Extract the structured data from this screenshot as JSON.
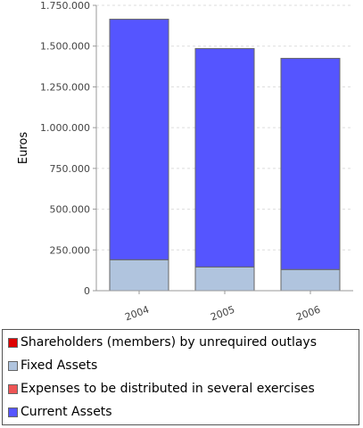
{
  "chart_data": {
    "type": "bar",
    "stacked": true,
    "categories": [
      "2004",
      "2005",
      "2006"
    ],
    "ylabel": "Euros",
    "ylim": [
      0,
      1750000
    ],
    "yticks": [
      0,
      250000,
      500000,
      750000,
      1000000,
      1250000,
      1500000,
      1750000
    ],
    "ytick_labels": [
      "0",
      "250.000",
      "500.000",
      "750.000",
      "1.000.000",
      "1.250.000",
      "1.500.000",
      "1.750.000"
    ],
    "grid": true,
    "legend_position": "bottom",
    "series": [
      {
        "name": "Shareholders (members) by unrequired outlays",
        "color": "#dd0000",
        "values": [
          0,
          0,
          0
        ]
      },
      {
        "name": "Fixed Assets",
        "color": "#b0c4de",
        "values": [
          190000,
          145000,
          130000
        ]
      },
      {
        "name": "Expenses to be distributed in several exercises",
        "color": "#ee5555",
        "values": [
          0,
          0,
          0
        ]
      },
      {
        "name": "Current Assets",
        "color": "#5555ff",
        "values": [
          1475000,
          1340000,
          1295000
        ]
      }
    ]
  }
}
